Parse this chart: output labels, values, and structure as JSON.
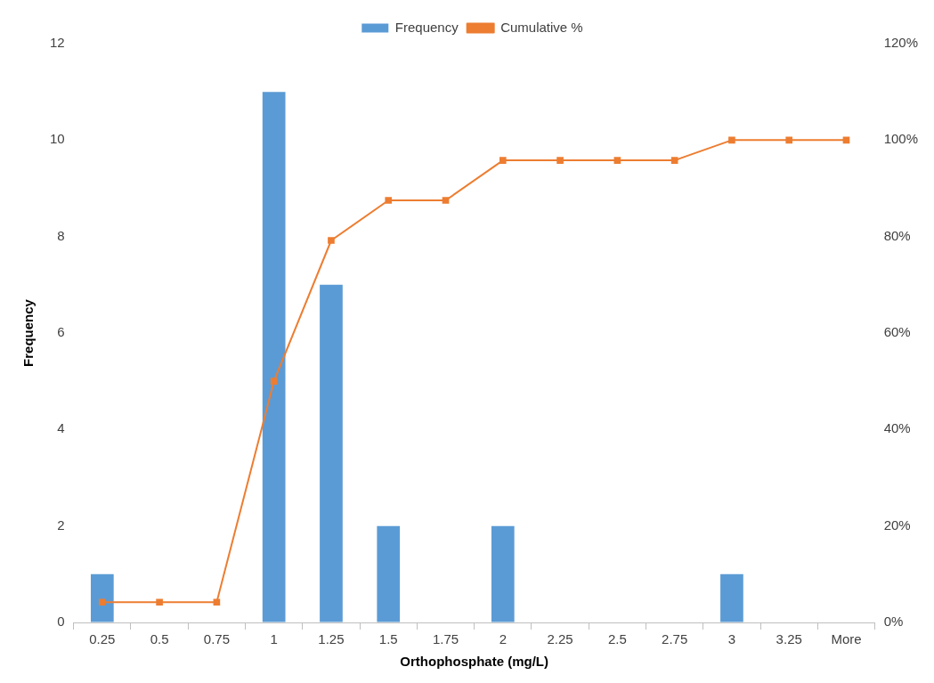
{
  "chart_data": {
    "type": "bar",
    "xlabel": "Orthophosphate (mg/L)",
    "ylabel": "Frequency",
    "categories": [
      "0.25",
      "0.5",
      "0.75",
      "1",
      "1.25",
      "1.5",
      "1.75",
      "2",
      "2.25",
      "2.5",
      "2.75",
      "3",
      "3.25",
      "More"
    ],
    "series": [
      {
        "name": "Frequency",
        "color": "#5b9bd5",
        "values": [
          1,
          0,
          0,
          11,
          7,
          2,
          0,
          2,
          0,
          0,
          0,
          1,
          0,
          0
        ]
      },
      {
        "name": "Cumulative %",
        "type": "line",
        "axis": "y2",
        "color": "#ed7d31",
        "marker": "square",
        "values": [
          4.2,
          4.2,
          4.2,
          50,
          79.2,
          87.5,
          87.5,
          95.8,
          95.8,
          95.8,
          95.8,
          100,
          100,
          100
        ]
      }
    ],
    "ylim": [
      0,
      12
    ],
    "yticks": [
      0,
      2,
      4,
      6,
      8,
      10,
      12
    ],
    "y2lim": [
      0,
      120
    ],
    "y2ticks": [
      {
        "value": 0,
        "label": "0%"
      },
      {
        "value": 20,
        "label": "20%"
      },
      {
        "value": 40,
        "label": "40%"
      },
      {
        "value": 60,
        "label": "60%"
      },
      {
        "value": 80,
        "label": "80%"
      },
      {
        "value": 100,
        "label": "100%"
      },
      {
        "value": 120,
        "label": "120%"
      }
    ],
    "grid": false,
    "legend": "top"
  }
}
